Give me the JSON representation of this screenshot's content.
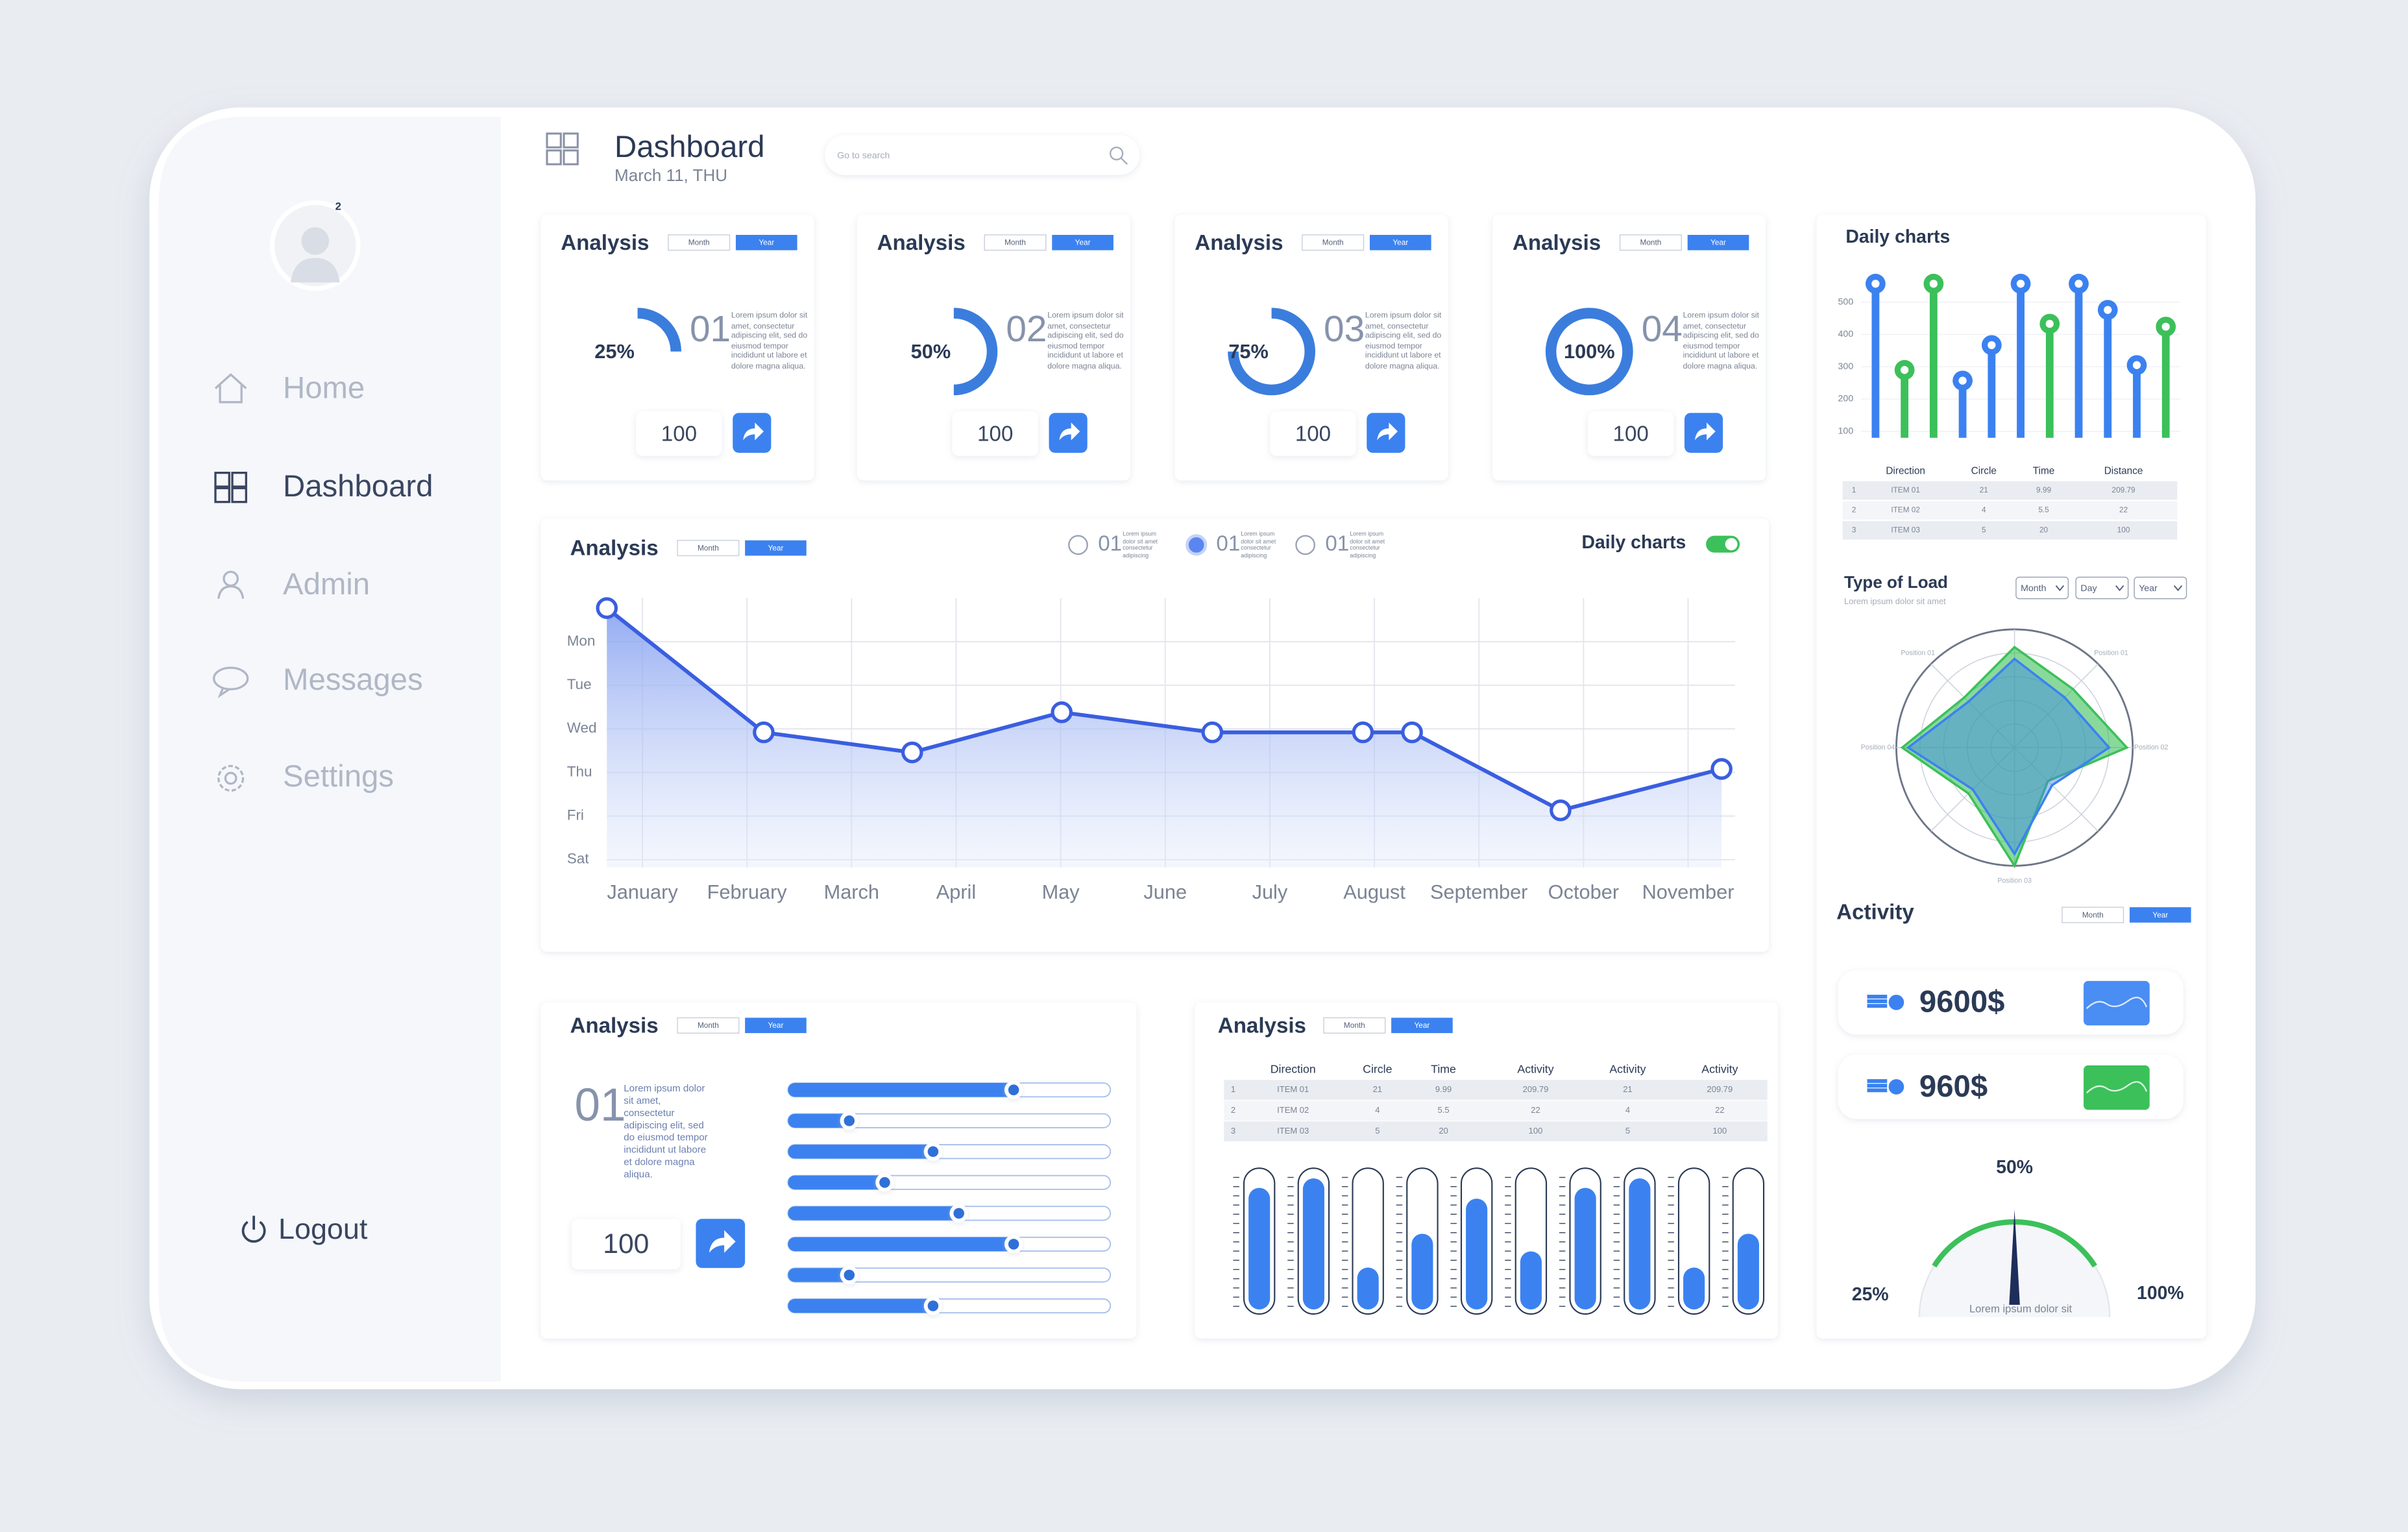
{
  "sidebar": {
    "badge": "2",
    "menu": [
      "Home",
      "Dashboard",
      "Admin",
      "Messages",
      "Settings"
    ],
    "active": 1,
    "logout": "Logout"
  },
  "header": {
    "title": "Dashboard",
    "date": "March 11, THU",
    "search": "Go to search"
  },
  "kpi_cards": [
    {
      "title": "Analysis",
      "tabs": [
        "Month",
        "Year"
      ],
      "number": "01",
      "text": "Lorem ipsum dolor sit amet, consectetur adipiscing elit, sed do eiusmod tempor incididunt ut labore et dolore magna aliqua.",
      "button_value": "100"
    },
    {
      "title": "Analysis",
      "tabs": [
        "Month",
        "Year"
      ],
      "number": "02",
      "text": "Lorem ipsum dolor sit amet, consectetur adipiscing elit, sed do eiusmod tempor incididunt ut labore et dolore magna aliqua.",
      "button_value": "100"
    },
    {
      "title": "Analysis",
      "tabs": [
        "Month",
        "Year"
      ],
      "number": "03",
      "text": "Lorem ipsum dolor sit amet, consectetur adipiscing elit, sed do eiusmod tempor incididunt ut labore et dolore magna aliqua.",
      "button_value": "100"
    },
    {
      "title": "Analysis",
      "tabs": [
        "Month",
        "Year"
      ],
      "number": "04",
      "text": "Lorem ipsum dolor sit amet, consectetur adipiscing elit, sed do eiusmod tempor incididunt ut labore et dolore magna aliqua.",
      "button_value": "100"
    }
  ],
  "line_card": {
    "title": "Analysis",
    "tabs": [
      "Month",
      "Year"
    ],
    "legend": [
      {
        "number": "01",
        "text": "Lorem ipsum dolor sit amet consectetur adipiscing"
      },
      {
        "number": "01",
        "text": "Lorem ipsum dolor sit amet consectetur adipiscing"
      },
      {
        "number": "01",
        "text": "Lorem ipsum dolor sit amet consectetur adipiscing"
      }
    ],
    "toggle_label": "Daily charts"
  },
  "daily_card": {
    "title": "Daily charts",
    "table": {
      "header": [
        "Direction",
        "Circle",
        "Time",
        "Distance"
      ],
      "rows": [
        [
          "1",
          "ITEM 01",
          "21",
          "9.99",
          "209.79"
        ],
        [
          "2",
          "ITEM 02",
          "4",
          "5.5",
          "22"
        ],
        [
          "3",
          "ITEM 03",
          "5",
          "20",
          "100"
        ]
      ]
    }
  },
  "load_card": {
    "title": "Type of Load",
    "subtitle": "Lorem ipsum dolor sit amet",
    "dropdowns": [
      "Month",
      "Day",
      "Year"
    ]
  },
  "activity": {
    "title": "Activity",
    "tabs": [
      "Month",
      "Year"
    ],
    "items": [
      "9600$",
      "960$"
    ],
    "gauge": {
      "min_label": "25%",
      "mid_label": "50%",
      "max_label": "100%",
      "caption": "Lorem ipsum  dolor sit"
    }
  },
  "slider_card": {
    "title": "Analysis",
    "tabs": [
      "Month",
      "Year"
    ],
    "number": "01",
    "text": "Lorem ipsum dolor sit amet, consectetur adipiscing elit, sed do eiusmod tempor incididunt ut labore et dolore magna aliqua.",
    "button_value": "100"
  },
  "table_card": {
    "title": "Analysis",
    "tabs": [
      "Month",
      "Year"
    ],
    "table": {
      "header": [
        "Direction",
        "Circle",
        "Time",
        "Activity",
        "Activity",
        "Activity"
      ],
      "rows": [
        [
          "1",
          "ITEM 01",
          "21",
          "9.99",
          "209.79",
          "21",
          "209.79"
        ],
        [
          "2",
          "ITEM 02",
          "4",
          "5.5",
          "22",
          "4",
          "22"
        ],
        [
          "3",
          "ITEM 03",
          "5",
          "20",
          "100",
          "5",
          "100"
        ]
      ]
    }
  },
  "chart_data": [
    {
      "type": "donut",
      "values": [
        25,
        50,
        75,
        100
      ],
      "value_labels": [
        "25%",
        "50%",
        "75%",
        "100%"
      ],
      "ylim": [
        0,
        100
      ],
      "color": "#3b7ddd"
    },
    {
      "type": "line",
      "x": [
        -0.34,
        1.16,
        2.58,
        4.01,
        5.45,
        6.89,
        7.36,
        8.78,
        10.32
      ],
      "values": [
        5.77,
        2.92,
        2.46,
        3.38,
        2.92,
        2.92,
        2.92,
        1.13,
        2.08
      ],
      "xlim": [
        -0.34,
        10.45
      ],
      "ylim": [
        0,
        6
      ],
      "xticks": [
        {
          "value": 0,
          "label": "January"
        },
        {
          "value": 1,
          "label": "February"
        },
        {
          "value": 2,
          "label": "March"
        },
        {
          "value": 3,
          "label": "April"
        },
        {
          "value": 4,
          "label": "May"
        },
        {
          "value": 5,
          "label": "June"
        },
        {
          "value": 6,
          "label": "July"
        },
        {
          "value": 7,
          "label": "August"
        },
        {
          "value": 8,
          "label": "September"
        },
        {
          "value": 9,
          "label": "October"
        },
        {
          "value": 10,
          "label": "November"
        }
      ],
      "yticks": [
        {
          "value": 5,
          "label": "Mon"
        },
        {
          "value": 4,
          "label": "Tue"
        },
        {
          "value": 3,
          "label": "Wed"
        },
        {
          "value": 2,
          "label": "Thu"
        },
        {
          "value": 1,
          "label": "Fri"
        },
        {
          "value": 0,
          "label": "Sat"
        }
      ],
      "color": "#3a5ee0",
      "grid": true
    },
    {
      "type": "lollipop",
      "categories": [
        null,
        null,
        null,
        null,
        null,
        null,
        null,
        null,
        null,
        null,
        null
      ],
      "series": [
        {
          "color": "#3b82f0",
          "values": [
            557,
            null,
            null,
            257,
            367,
            557,
            null,
            557,
            476,
            305,
            null
          ]
        },
        {
          "color": "#3cc05a",
          "values": [
            null,
            290,
            557,
            null,
            null,
            null,
            433,
            null,
            null,
            null,
            424
          ]
        }
      ],
      "ylim": [
        80,
        580
      ],
      "yticks": [
        100,
        200,
        300,
        400,
        500
      ]
    },
    {
      "type": "radar",
      "categories": [
        null,
        "Position 01",
        "Position 02",
        null,
        "Position 03",
        null,
        "Position 04",
        "Position 01"
      ],
      "series": [
        {
          "color": "#3cc05a",
          "values": [
            85,
            70,
            95,
            40,
            100,
            55,
            95,
            60
          ]
        },
        {
          "color": "#3b82f0",
          "values": [
            75,
            60,
            80,
            45,
            90,
            50,
            90,
            55
          ]
        }
      ],
      "rlim": [
        0,
        100
      ],
      "rticks": [
        20,
        40,
        60,
        80,
        100
      ]
    },
    {
      "type": "slider",
      "values": [
        70,
        19,
        45,
        30,
        53,
        70,
        19,
        45
      ],
      "xlim": [
        0,
        100
      ],
      "color": "#3b82f0"
    },
    {
      "type": "bar",
      "values": [
        90,
        97,
        31,
        56,
        82,
        43,
        90,
        97,
        31,
        56
      ],
      "ylim": [
        0,
        100
      ],
      "color": "#3b82f0"
    }
  ]
}
